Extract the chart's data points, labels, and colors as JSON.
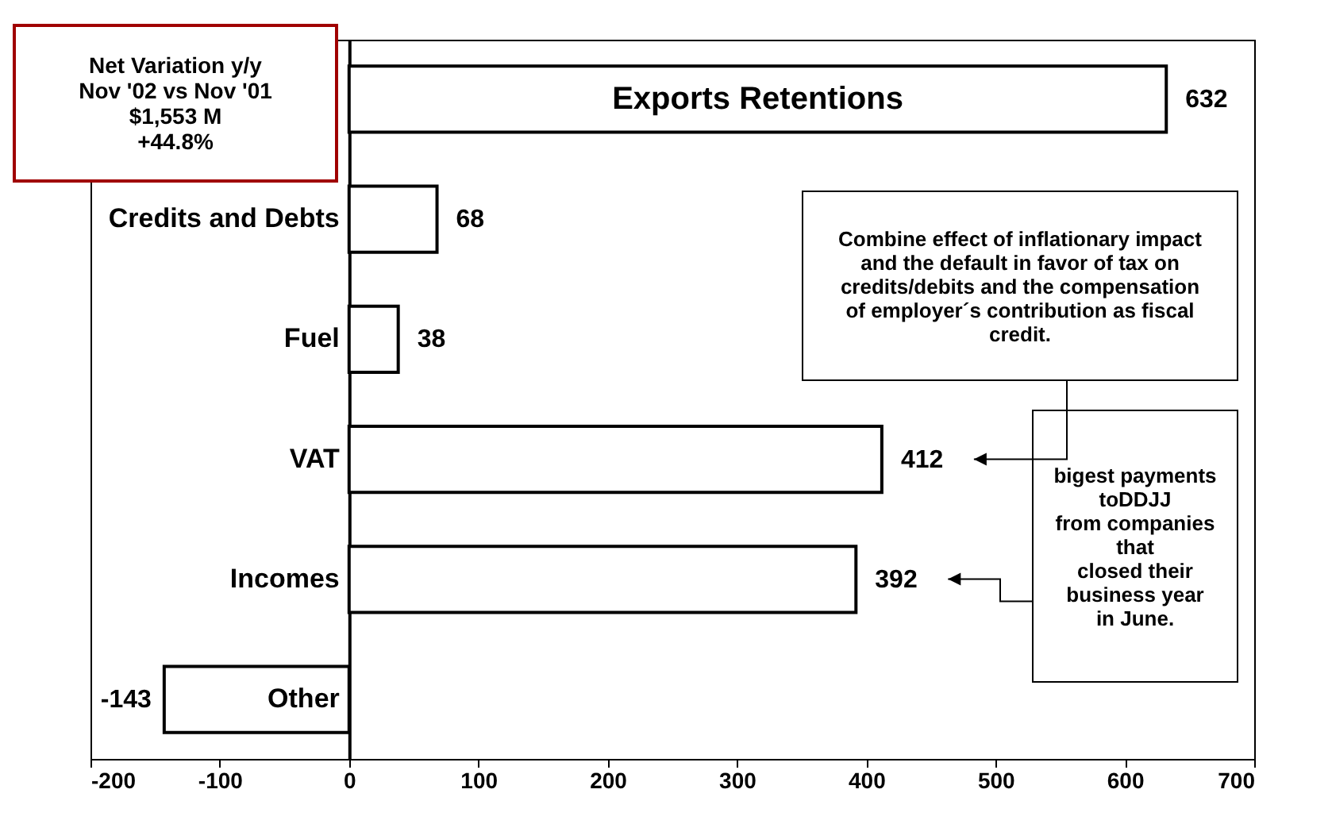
{
  "chart_data": {
    "type": "bar",
    "orientation": "horizontal",
    "categories": [
      "Exports Retentions",
      "Credits and Debts",
      "Fuel",
      "VAT",
      "Incomes",
      "Other"
    ],
    "values": [
      632,
      68,
      38,
      412,
      392,
      -143
    ],
    "color": "#ffffff",
    "data_labels": true,
    "grid": false,
    "xlim": [
      -200,
      700
    ],
    "xticks": [
      -200,
      -100,
      0,
      100,
      200,
      300,
      400,
      500,
      600,
      700
    ],
    "annotations": [
      "Net Variation y/y\nNov '02 vs Nov '01\n$1,553 M\n+44.8%",
      "Combine effect of inflationary impact\nand the default in favor of tax on\ncredits/debits and the compensation\nof employer´s contribution as fiscal\ncredit.",
      "bigest payments\ntoDDJJ\nfrom companies\nthat\nclosed their\nbusiness year\nin June."
    ]
  }
}
